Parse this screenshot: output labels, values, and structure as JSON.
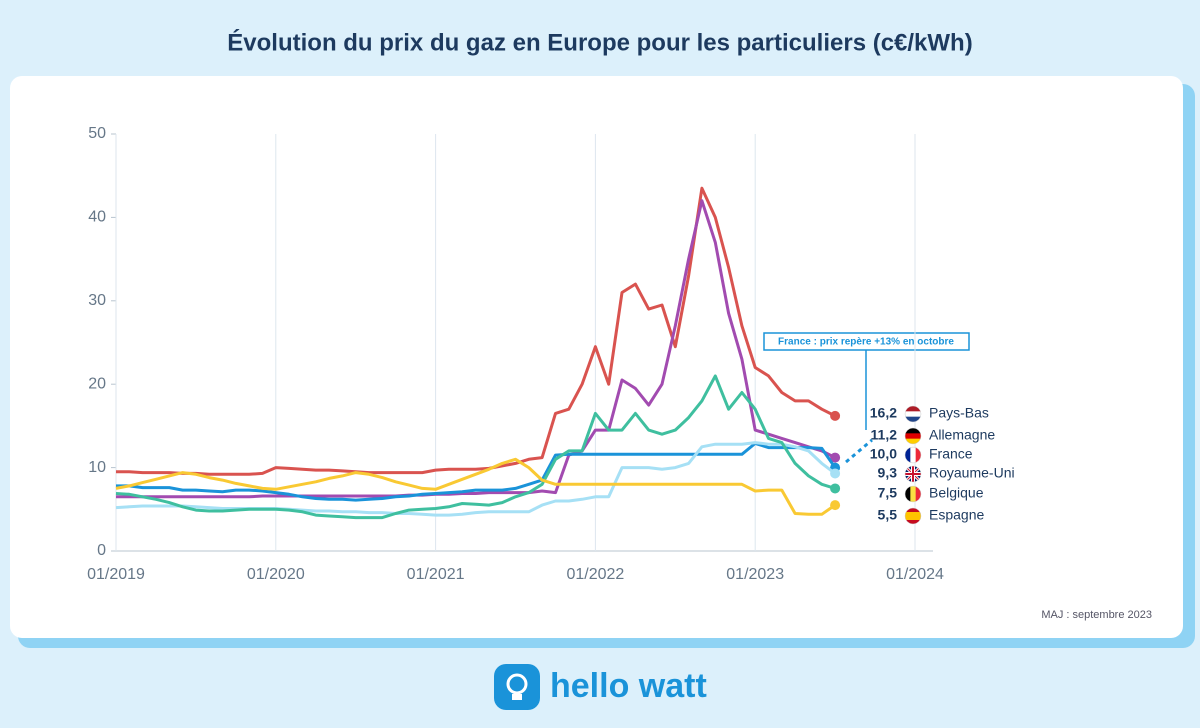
{
  "chart_data": {
    "type": "line",
    "title": "Évolution du prix du gaz en Europe pour les particuliers (c€/kWh)",
    "note": "MAJ : septembre 2023",
    "brand": "hello watt",
    "annotation": "France : prix repère +13% en octobre",
    "x": [
      "2019-01",
      "2019-02",
      "2019-03",
      "2019-04",
      "2019-05",
      "2019-06",
      "2019-07",
      "2019-08",
      "2019-09",
      "2019-10",
      "2019-11",
      "2019-12",
      "2020-01",
      "2020-02",
      "2020-03",
      "2020-04",
      "2020-05",
      "2020-06",
      "2020-07",
      "2020-08",
      "2020-09",
      "2020-10",
      "2020-11",
      "2020-12",
      "2021-01",
      "2021-02",
      "2021-03",
      "2021-04",
      "2021-05",
      "2021-06",
      "2021-07",
      "2021-08",
      "2021-09",
      "2021-10",
      "2021-11",
      "2021-12",
      "2022-01",
      "2022-02",
      "2022-03",
      "2022-04",
      "2022-05",
      "2022-06",
      "2022-07",
      "2022-08",
      "2022-09",
      "2022-10",
      "2022-11",
      "2022-12",
      "2023-01",
      "2023-02",
      "2023-03",
      "2023-04",
      "2023-05",
      "2023-06",
      "2023-07"
    ],
    "xlim": [
      "2019-01",
      "2024-01"
    ],
    "xticks": [
      {
        "value": "2019-01",
        "label": "01/2019"
      },
      {
        "value": "2020-01",
        "label": "01/2020"
      },
      {
        "value": "2021-01",
        "label": "01/2021"
      },
      {
        "value": "2022-01",
        "label": "01/2022"
      },
      {
        "value": "2023-01",
        "label": "01/2023"
      },
      {
        "value": "2024-01",
        "label": "01/2024"
      }
    ],
    "ylim": [
      0,
      50
    ],
    "yticks": [
      0,
      10,
      20,
      30,
      40,
      50
    ],
    "grid": true,
    "series": [
      {
        "name": "Pays-Bas",
        "color": "#d9534f",
        "value_labels": "16,2",
        "values": [
          9.5,
          9.5,
          9.4,
          9.4,
          9.4,
          9.3,
          9.3,
          9.2,
          9.2,
          9.2,
          9.2,
          9.3,
          10.0,
          9.9,
          9.8,
          9.7,
          9.7,
          9.6,
          9.5,
          9.4,
          9.4,
          9.4,
          9.4,
          9.4,
          9.7,
          9.8,
          9.8,
          9.8,
          9.9,
          10.2,
          10.5,
          11,
          11.2,
          16.5,
          17,
          20,
          24.5,
          20,
          31,
          32,
          29,
          29.5,
          24.5,
          33,
          43.5,
          40,
          34,
          27,
          22,
          21,
          19,
          18,
          18,
          17,
          16.2
        ]
      },
      {
        "name": "Allemagne",
        "color": "#a24bb0",
        "value_labels": "11,2",
        "values": [
          6.5,
          6.5,
          6.5,
          6.5,
          6.5,
          6.5,
          6.5,
          6.5,
          6.5,
          6.5,
          6.5,
          6.6,
          6.6,
          6.6,
          6.6,
          6.6,
          6.6,
          6.6,
          6.6,
          6.6,
          6.6,
          6.6,
          6.7,
          6.7,
          6.8,
          6.8,
          6.9,
          6.9,
          7,
          7,
          7,
          7,
          7.2,
          7,
          11.5,
          12,
          14.5,
          14.5,
          20.5,
          19.5,
          17.5,
          20,
          27,
          35,
          42,
          37,
          28.5,
          23,
          14.5,
          14,
          13.5,
          13,
          12.5,
          12,
          11.2
        ]
      },
      {
        "name": "France",
        "color": "#1a93d9",
        "value_labels": "10,0",
        "values": [
          7.8,
          7.8,
          7.6,
          7.6,
          7.6,
          7.3,
          7.3,
          7.2,
          7.1,
          7.3,
          7.3,
          7.2,
          7,
          6.8,
          6.5,
          6.3,
          6.2,
          6.2,
          6.1,
          6.2,
          6.3,
          6.5,
          6.6,
          6.8,
          6.9,
          7,
          7.1,
          7.3,
          7.3,
          7.3,
          7.5,
          8,
          8.5,
          11.5,
          11.6,
          11.6,
          11.6,
          11.6,
          11.6,
          11.6,
          11.6,
          11.6,
          11.6,
          11.6,
          11.6,
          11.6,
          11.6,
          11.6,
          12.9,
          12.4,
          12.4,
          12.4,
          12.4,
          12.3,
          10.0
        ]
      },
      {
        "name": "Royaume-Uni",
        "color": "#a6e0f5",
        "value_labels": "9,3",
        "values": [
          5.2,
          5.3,
          5.4,
          5.4,
          5.4,
          5.4,
          5.3,
          5.2,
          5.1,
          5.1,
          5.1,
          5.1,
          5.1,
          5,
          4.9,
          4.8,
          4.8,
          4.7,
          4.7,
          4.6,
          4.6,
          4.5,
          4.5,
          4.4,
          4.3,
          4.3,
          4.4,
          4.6,
          4.7,
          4.7,
          4.7,
          4.7,
          5.5,
          6,
          6,
          6.2,
          6.5,
          6.5,
          10,
          10,
          10,
          9.8,
          10,
          10.5,
          12.5,
          12.8,
          12.8,
          12.8,
          13,
          12.8,
          12.8,
          12.5,
          12,
          10.5,
          9.3
        ]
      },
      {
        "name": "Belgique",
        "color": "#3fbf9f",
        "value_labels": "7,5",
        "values": [
          6.9,
          6.8,
          6.5,
          6.2,
          5.8,
          5.3,
          4.9,
          4.8,
          4.8,
          4.9,
          5,
          5,
          5,
          4.9,
          4.7,
          4.3,
          4.2,
          4.1,
          4,
          4,
          4,
          4.5,
          4.9,
          5,
          5.1,
          5.3,
          5.7,
          5.6,
          5.5,
          5.8,
          6.5,
          7,
          8,
          11,
          12,
          12,
          16.5,
          14.5,
          14.5,
          16.5,
          14.5,
          14,
          14.5,
          16,
          18,
          21,
          17,
          19,
          17,
          13.5,
          13,
          10.5,
          9,
          8,
          7.5
        ]
      },
      {
        "name": "Espagne",
        "color": "#f9c933",
        "value_labels": "5,5",
        "values": [
          7.5,
          7.8,
          8.2,
          8.6,
          9,
          9.4,
          9.2,
          8.8,
          8.5,
          8.1,
          7.8,
          7.5,
          7.4,
          7.7,
          8,
          8.3,
          8.7,
          9,
          9.4,
          9.2,
          8.8,
          8.3,
          7.9,
          7.5,
          7.4,
          8,
          8.6,
          9.2,
          9.8,
          10.5,
          11,
          10,
          8.5,
          8,
          8,
          8,
          8,
          8,
          8,
          8,
          8,
          8,
          8,
          8,
          8,
          8,
          8,
          8,
          7.2,
          7.3,
          7.3,
          4.5,
          4.4,
          4.4,
          5.5
        ]
      }
    ]
  }
}
